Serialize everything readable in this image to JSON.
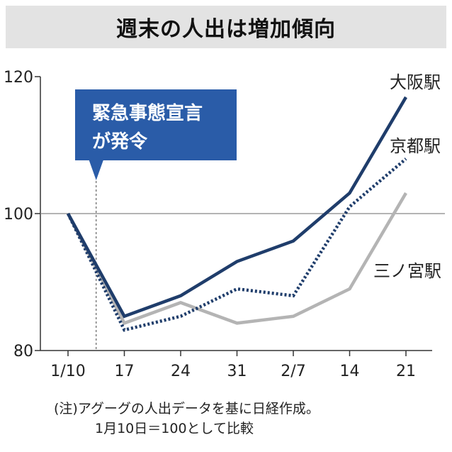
{
  "title": "週末の人出は増加傾向",
  "callout": {
    "lines": [
      "緊急事態宣言",
      "が発令"
    ]
  },
  "note": {
    "line1": "(注)アグーグの人出データを基に日経作成。",
    "line2": "1月10日＝100として比較"
  },
  "colors": {
    "osaka": "#1f3d6b",
    "kyoto": "#1f3d6b",
    "sannomiya": "#b4b4b4",
    "callout_bg": "#2a5ca8",
    "axis": "#333333",
    "gridline": "#888888"
  },
  "chart_data": {
    "type": "line",
    "title": "週末の人出は増加傾向",
    "categories": [
      "1/10",
      "17",
      "24",
      "31",
      "2/7",
      "14",
      "21"
    ],
    "ylim": [
      80,
      120
    ],
    "yticks": [
      80,
      100,
      120
    ],
    "reference_line": 100,
    "event_marker": {
      "position_between": [
        "1/10",
        "17"
      ],
      "label": "緊急事態宣言が発令"
    },
    "series": [
      {
        "name": "大阪駅",
        "style": "solid",
        "values": [
          100,
          85,
          88,
          93,
          96,
          103,
          117
        ]
      },
      {
        "name": "京都駅",
        "style": "dotted",
        "values": [
          100,
          83,
          85,
          89,
          88,
          101,
          108
        ]
      },
      {
        "name": "三ノ宮駅",
        "style": "solid-light",
        "values": [
          100,
          84,
          87,
          84,
          85,
          89,
          103
        ]
      }
    ]
  }
}
